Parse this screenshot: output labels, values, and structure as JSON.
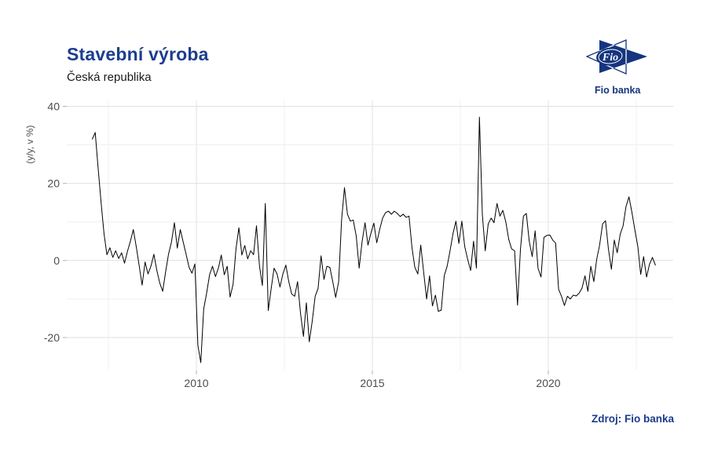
{
  "header": {
    "title": "Stavební výroba",
    "subtitle": "Česká republika"
  },
  "logo": {
    "emblem_text": "Fio",
    "caption": "Fio banka",
    "color": "#15357f"
  },
  "footer": {
    "source": "Zdroj: Fio banka"
  },
  "chart_data": {
    "type": "line",
    "title": "Stavební výroba",
    "region": "Česká republika",
    "ylabel": "(y/y, v %)",
    "x_ticks": [
      2010,
      2015,
      2020
    ],
    "x_minor": [
      2007.5,
      2012.5,
      2017.5,
      2022.5
    ],
    "y_ticks": [
      40,
      20,
      0,
      -20
    ],
    "y_minor": [
      30,
      10,
      -10
    ],
    "xlim": [
      2006.95,
      2023.3
    ],
    "ylim": [
      -28.7,
      41.5
    ],
    "grid": true,
    "legend": "none",
    "series": [
      {
        "name": "Stavební výroba (y/y, v %)",
        "start": "2007-01",
        "frequency": "monthly",
        "values": [
          31.5,
          33.2,
          24,
          15,
          7,
          1.5,
          3.3,
          0.8,
          2.5,
          0.5,
          2,
          -0.7,
          2.4,
          5,
          8,
          3.5,
          -1.4,
          -6.4,
          -0.4,
          -3.5,
          -1.5,
          1.6,
          -2.5,
          -5.8,
          -8,
          -3,
          1.6,
          4.8,
          9.8,
          3.2,
          8,
          4.8,
          1.6,
          -1.8,
          -3.3,
          -0.9,
          -22,
          -26.5,
          -12.6,
          -8.4,
          -3.7,
          -1.5,
          -4.2,
          -2,
          1.4,
          -3.7,
          -1.5,
          -9.5,
          -6.2,
          3,
          8.5,
          1.4,
          3.9,
          0.4,
          2.5,
          1.5,
          9,
          -1.4,
          -6.5,
          14.8,
          -13,
          -7.3,
          -2,
          -3.5,
          -6.9,
          -3.5,
          -1.2,
          -5.5,
          -8.7,
          -9.3,
          -5.5,
          -13.6,
          -19.7,
          -11,
          -21.1,
          -15.7,
          -9.3,
          -7.3,
          1.2,
          -4.9,
          -1.5,
          -1.8,
          -5.5,
          -9.6,
          -5.5,
          10.4,
          18.9,
          12,
          10.2,
          10.5,
          6.3,
          -2,
          4.8,
          9.8,
          4,
          7,
          9.7,
          4.6,
          8,
          11,
          12.4,
          12.8,
          12,
          12.8,
          12.2,
          11.4,
          12,
          11.2,
          11.5,
          3.4,
          -1.8,
          -3.5,
          4,
          -3,
          -10,
          -4,
          -11.8,
          -9,
          -13.2,
          -12.9,
          -4,
          -1.5,
          2.5,
          7,
          10.2,
          4.4,
          10.2,
          3.6,
          0.3,
          -2.6,
          5,
          -2,
          37.2,
          12,
          2.5,
          9.5,
          11,
          9.8,
          14.8,
          11.5,
          13,
          10,
          5.5,
          3,
          2.5,
          -11.6,
          2.8,
          11.5,
          12.2,
          5,
          1,
          7.7,
          -2,
          -4.3,
          6,
          6.5,
          6.6,
          5.3,
          4.5,
          -7.5,
          -9.3,
          -11.7,
          -9.3,
          -10,
          -9,
          -9.2,
          -8.5,
          -7.2,
          -4,
          -8,
          -1.5,
          -5.5,
          0.3,
          4,
          9.5,
          10.3,
          3,
          -2.3,
          5.3,
          2,
          6.8,
          9,
          14,
          16.5,
          12.5,
          8,
          3.7,
          -3.6,
          1,
          -4.3,
          -1,
          0.8,
          -1.2
        ]
      }
    ],
    "style": {
      "line_color": "#000000",
      "grid_major_color": "#e0e0e0",
      "grid_minor_color": "#efefef",
      "tick_color": "#b3b3b3",
      "tick_text_color": "#4d4d4d",
      "background": "#ffffff"
    }
  }
}
